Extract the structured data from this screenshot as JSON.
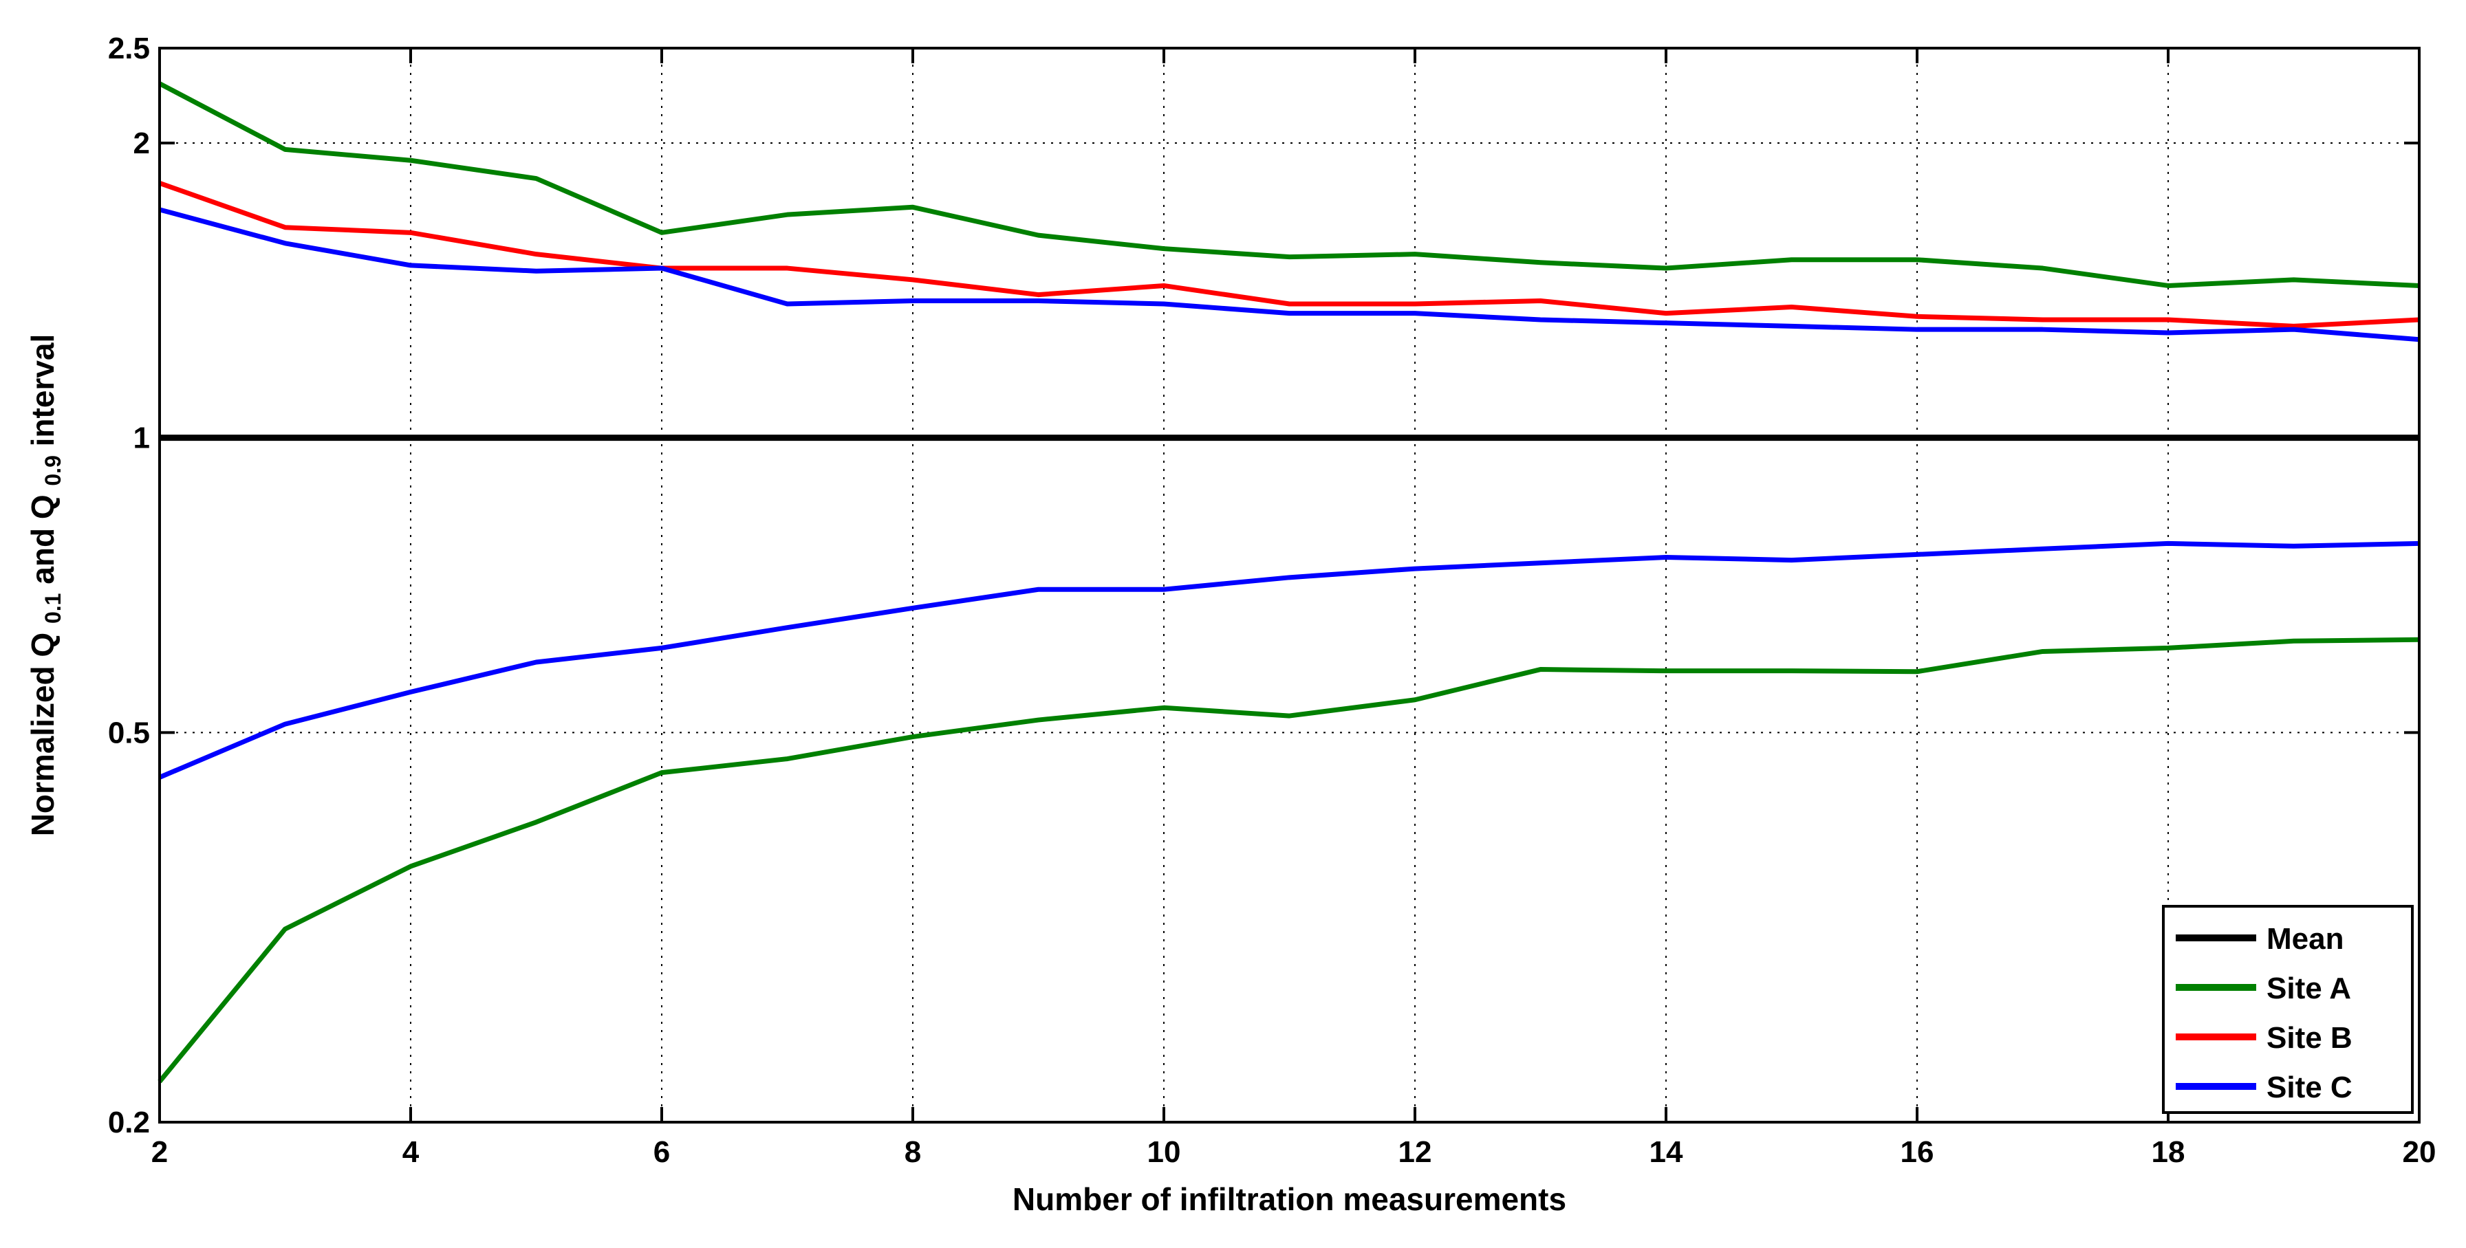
{
  "chart_data": {
    "type": "line",
    "title": "",
    "xlabel": "Number of infiltration measurements",
    "ylabel": {
      "prefix": "Normalized Q",
      "sub1": "0.1",
      "middle": " and Q",
      "sub2": "0.9",
      "suffix": " interval"
    },
    "xlim": [
      2,
      20
    ],
    "ylim": [
      0.2,
      2.5
    ],
    "yscale": "log",
    "xticks": [
      2,
      4,
      6,
      8,
      10,
      12,
      14,
      16,
      18,
      20
    ],
    "yticks": [
      0.2,
      0.5,
      1,
      2,
      2.5
    ],
    "ytick_labels": [
      "0.2",
      "0.5",
      "1",
      "2",
      "2.5"
    ],
    "grid": true,
    "legend_position": "bottom-right",
    "x": [
      2,
      3,
      4,
      5,
      6,
      7,
      8,
      9,
      10,
      11,
      12,
      13,
      14,
      15,
      16,
      17,
      18,
      19,
      20
    ],
    "series": [
      {
        "name": "Mean",
        "color": "#000000",
        "values": [
          1,
          1,
          1,
          1,
          1,
          1,
          1,
          1,
          1,
          1,
          1,
          1,
          1,
          1,
          1,
          1,
          1,
          1,
          1
        ]
      },
      {
        "name": "Site A",
        "color": "#008000",
        "upper": [
          2.3,
          1.97,
          1.92,
          1.84,
          1.62,
          1.69,
          1.72,
          1.61,
          1.56,
          1.53,
          1.54,
          1.51,
          1.49,
          1.52,
          1.52,
          1.49,
          1.43,
          1.45,
          1.43
        ],
        "lower": [
          0.22,
          0.315,
          0.365,
          0.405,
          0.455,
          0.47,
          0.495,
          0.515,
          0.53,
          0.52,
          0.54,
          0.58,
          0.578,
          0.578,
          0.577,
          0.605,
          0.61,
          0.62,
          0.622
        ]
      },
      {
        "name": "Site B",
        "color": "#ff0000",
        "upper": [
          1.82,
          1.64,
          1.62,
          1.54,
          1.49,
          1.49,
          1.45,
          1.4,
          1.43,
          1.37,
          1.37,
          1.38,
          1.34,
          1.36,
          1.33,
          1.32,
          1.32,
          1.3,
          1.32
        ]
      },
      {
        "name": "Site C",
        "color": "#0000ff",
        "upper": [
          1.71,
          1.58,
          1.5,
          1.48,
          1.49,
          1.37,
          1.38,
          1.38,
          1.37,
          1.34,
          1.34,
          1.32,
          1.31,
          1.3,
          1.29,
          1.29,
          1.28,
          1.29,
          1.26
        ],
        "lower": [
          0.45,
          0.51,
          0.55,
          0.59,
          0.61,
          0.64,
          0.67,
          0.7,
          0.7,
          0.72,
          0.735,
          0.745,
          0.755,
          0.75,
          0.76,
          0.77,
          0.78,
          0.775,
          0.78
        ]
      }
    ]
  }
}
